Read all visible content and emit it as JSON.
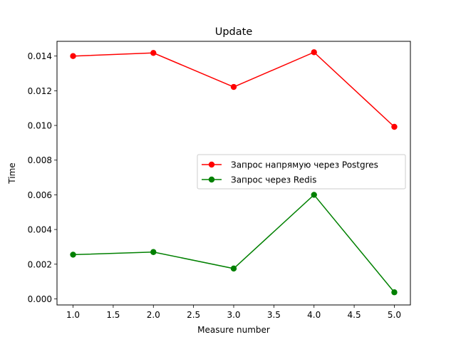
{
  "chart_data": {
    "type": "line",
    "title": "Update",
    "xlabel": "Measure number",
    "ylabel": "Time",
    "xlim": [
      0.8,
      5.2
    ],
    "ylim": [
      -0.00035,
      0.01485
    ],
    "xticks": [
      1.0,
      1.5,
      2.0,
      2.5,
      3.0,
      3.5,
      4.0,
      4.5,
      5.0
    ],
    "xtick_labels": [
      "1.0",
      "1.5",
      "2.0",
      "2.5",
      "3.0",
      "3.5",
      "4.0",
      "4.5",
      "5.0"
    ],
    "yticks": [
      0.0,
      0.002,
      0.004,
      0.006,
      0.008,
      0.01,
      0.012,
      0.014
    ],
    "ytick_labels": [
      "0.000",
      "0.002",
      "0.004",
      "0.006",
      "0.008",
      "0.010",
      "0.012",
      "0.014"
    ],
    "grid": false,
    "legend_position": "center-right",
    "series": [
      {
        "name": "Запрос напрямую через Postgres",
        "color": "#ff0000",
        "marker": "circle",
        "x": [
          1,
          2,
          3,
          4,
          5
        ],
        "y": [
          0.014,
          0.01418,
          0.01222,
          0.01422,
          0.00992
        ]
      },
      {
        "name": "Запрос через Redis",
        "color": "#008000",
        "marker": "circle",
        "x": [
          1,
          2,
          3,
          4,
          5
        ],
        "y": [
          0.00255,
          0.0027,
          0.00175,
          0.006,
          0.00038
        ]
      }
    ]
  }
}
